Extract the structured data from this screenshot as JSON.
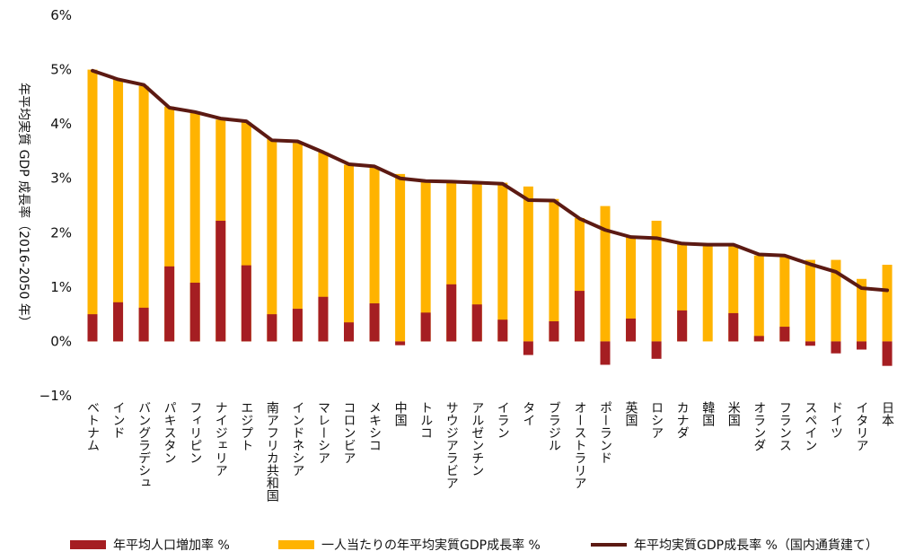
{
  "chart_data": {
    "type": "bar",
    "ylabel": "年平均実質 GDP 成長率（2016-2050 年）",
    "ylim": [
      -1,
      6
    ],
    "yticks": [
      "6%",
      "5%",
      "4%",
      "3%",
      "2%",
      "1%",
      "0%",
      "−1%"
    ],
    "categories": [
      "ベトナム",
      "インド",
      "バングラデシュ",
      "パキスタン",
      "フィリピン",
      "ナイジェリア",
      "エジプト",
      "南アフリカ共和国",
      "インドネシア",
      "マレーシア",
      "コロンビア",
      "メキシコ",
      "中国",
      "トルコ",
      "サウジアラビア",
      "アルゼンチン",
      "イラン",
      "タイ",
      "ブラジル",
      "オーストラリア",
      "ポーランド",
      "英国",
      "ロシア",
      "カナダ",
      "韓国",
      "米国",
      "オランダ",
      "フランス",
      "スペイン",
      "ドイツ",
      "イタリア",
      "日本"
    ],
    "series": [
      {
        "name": "年平均人口増加率 %",
        "kind": "bar",
        "color": "#A51E22",
        "values": [
          0.5,
          0.72,
          0.62,
          1.38,
          1.08,
          2.22,
          1.4,
          0.5,
          0.6,
          0.82,
          0.35,
          0.7,
          -0.07,
          0.53,
          1.05,
          0.68,
          0.4,
          -0.25,
          0.37,
          0.93,
          -0.43,
          0.42,
          -0.32,
          0.57,
          0.0,
          0.52,
          0.1,
          0.27,
          -0.08,
          -0.22,
          -0.15,
          -0.45
        ]
      },
      {
        "name": "一人当たりの年平均実質GDP成長率 %",
        "kind": "bar",
        "color": "#FFB300",
        "values": [
          5.0,
          4.82,
          4.7,
          4.32,
          4.22,
          4.08,
          4.03,
          3.72,
          3.65,
          3.48,
          3.25,
          3.2,
          3.08,
          2.95,
          2.95,
          2.93,
          2.92,
          2.85,
          2.62,
          2.27,
          2.49,
          1.92,
          2.22,
          1.8,
          1.78,
          1.77,
          1.58,
          1.55,
          1.5,
          1.5,
          1.15,
          1.41
        ]
      },
      {
        "name": "年平均実質GDP成長率 %（国内通貨建て）",
        "kind": "line",
        "color": "#5C1A13",
        "values": [
          4.98,
          4.82,
          4.72,
          4.3,
          4.22,
          4.1,
          4.05,
          3.7,
          3.68,
          3.48,
          3.26,
          3.22,
          3.0,
          2.95,
          2.94,
          2.92,
          2.9,
          2.6,
          2.59,
          2.26,
          2.05,
          1.92,
          1.9,
          1.8,
          1.78,
          1.78,
          1.6,
          1.58,
          1.42,
          1.28,
          0.98,
          0.94
        ]
      }
    ],
    "legend": "bottom",
    "grid": false
  }
}
